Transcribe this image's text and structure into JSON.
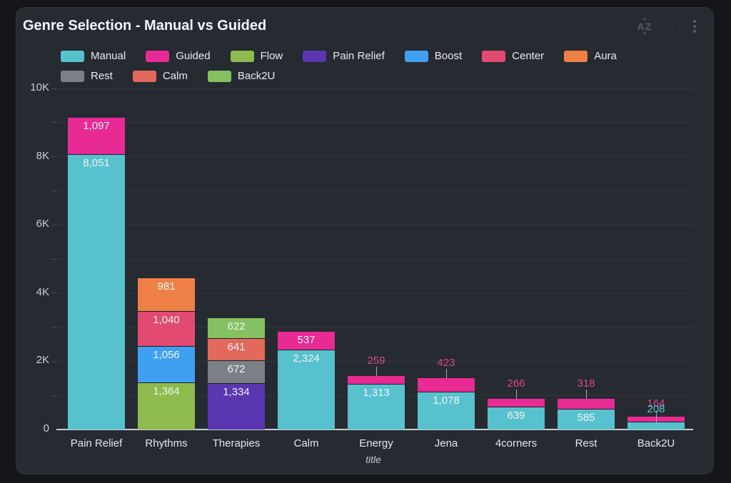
{
  "window": {
    "background": "#141619",
    "card_background": "#262a31"
  },
  "header": {
    "title": "Genre Selection - Manual vs Guided",
    "sort_label": "AZ",
    "menu_icon": "kebab-vertical-icon"
  },
  "legend": {
    "position": "top",
    "items": [
      {
        "label": "Manual",
        "color": "#58c1ce"
      },
      {
        "label": "Guided",
        "color": "#e72a94"
      },
      {
        "label": "Flow",
        "color": "#8dbb4d"
      },
      {
        "label": "Pain Relief",
        "color": "#5a36b0"
      },
      {
        "label": "Boost",
        "color": "#3fa0f1"
      },
      {
        "label": "Center",
        "color": "#e24a72"
      },
      {
        "label": "Aura",
        "color": "#ef8045"
      },
      {
        "label": "Rest",
        "color": "#7b8086"
      },
      {
        "label": "Calm",
        "color": "#e4695d"
      },
      {
        "label": "Back2U",
        "color": "#85c162"
      }
    ]
  },
  "chart_data": {
    "type": "bar",
    "variant": "stacked",
    "title": "Genre Selection - Manual vs Guided",
    "xlabel": "title",
    "ylabel": "",
    "ylim": [
      0,
      10000
    ],
    "ytick_interval": 1000,
    "ylabel_interval": 2000,
    "y_tick_labels": [
      "0",
      "2K",
      "4K",
      "6K",
      "8K",
      "10K"
    ],
    "grid": "horizontal",
    "legend_position": "top",
    "categories": [
      "Pain Relief",
      "Rhythms",
      "Therapies",
      "Calm",
      "Energy",
      "Jena",
      "4corners",
      "Rest",
      "Back2U"
    ],
    "series_colors": {
      "Manual": "#58c1ce",
      "Guided": "#e72a94",
      "Flow": "#8dbb4d",
      "Pain Relief": "#5a36b0",
      "Boost": "#3fa0f1",
      "Center": "#e24a72",
      "Aura": "#ef8045",
      "Rest": "#7b8086",
      "Calm": "#e4695d",
      "Back2U": "#85c162"
    },
    "outside_label_colors": {
      "Manual": "#5fc7d4",
      "Guided": "#d84b80"
    },
    "stacks": [
      {
        "category": "Pain Relief",
        "segments": [
          {
            "series": "Manual",
            "value": 8051,
            "label": "8,051"
          },
          {
            "series": "Guided",
            "value": 1097,
            "label": "1,097"
          }
        ]
      },
      {
        "category": "Rhythms",
        "segments": [
          {
            "series": "Flow",
            "value": 1364,
            "label": "1,364"
          },
          {
            "series": "Boost",
            "value": 1056,
            "label": "1,056"
          },
          {
            "series": "Center",
            "value": 1040,
            "label": "1,040"
          },
          {
            "series": "Aura",
            "value": 981,
            "label": "981"
          }
        ]
      },
      {
        "category": "Therapies",
        "segments": [
          {
            "series": "Pain Relief",
            "value": 1334,
            "label": "1,334"
          },
          {
            "series": "Rest",
            "value": 672,
            "label": "672"
          },
          {
            "series": "Calm",
            "value": 641,
            "label": "641"
          },
          {
            "series": "Back2U",
            "value": 622,
            "label": "622"
          }
        ]
      },
      {
        "category": "Calm",
        "segments": [
          {
            "series": "Manual",
            "value": 2324,
            "label": "2,324"
          },
          {
            "series": "Guided",
            "value": 537,
            "label": "537"
          }
        ]
      },
      {
        "category": "Energy",
        "segments": [
          {
            "series": "Manual",
            "value": 1313,
            "label": "1,313"
          },
          {
            "series": "Guided",
            "value": 259,
            "label": "259"
          }
        ]
      },
      {
        "category": "Jena",
        "segments": [
          {
            "series": "Manual",
            "value": 1078,
            "label": "1,078"
          },
          {
            "series": "Guided",
            "value": 423,
            "label": "423"
          }
        ]
      },
      {
        "category": "4corners",
        "segments": [
          {
            "series": "Manual",
            "value": 639,
            "label": "639"
          },
          {
            "series": "Guided",
            "value": 266,
            "label": "266"
          }
        ]
      },
      {
        "category": "Rest",
        "segments": [
          {
            "series": "Manual",
            "value": 585,
            "label": "585"
          },
          {
            "series": "Guided",
            "value": 318,
            "label": "318"
          }
        ]
      },
      {
        "category": "Back2U",
        "segments": [
          {
            "series": "Manual",
            "value": 208,
            "label": "208"
          },
          {
            "series": "Guided",
            "value": 164,
            "label": "164"
          }
        ]
      }
    ]
  }
}
